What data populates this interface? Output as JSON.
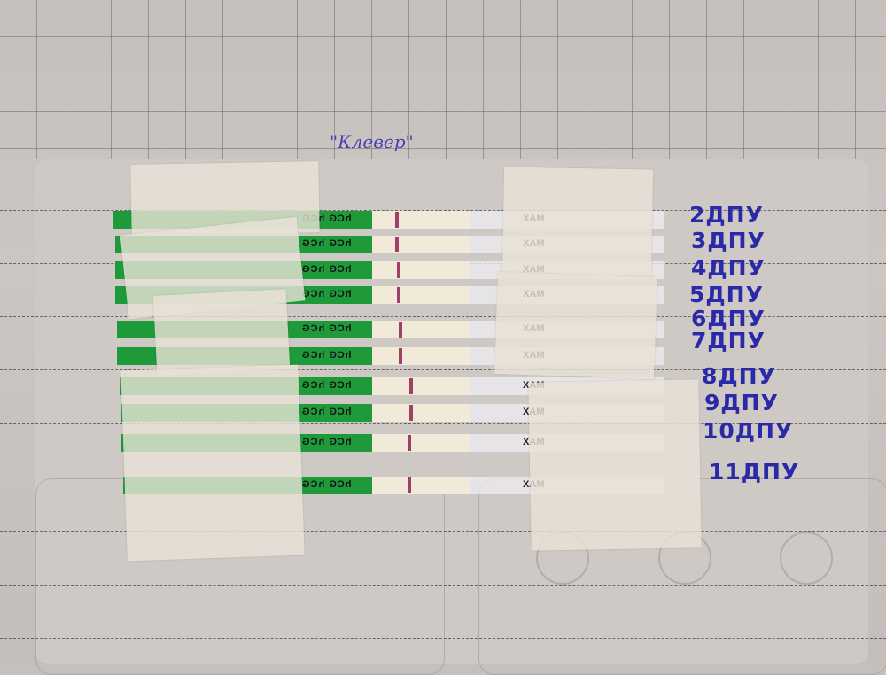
{
  "brand_label": "\"Клевер\"",
  "strip_print": "hCG hCG",
  "strip_max": "MAX",
  "colors": {
    "test_strip_green": "#1f9a3a",
    "control_line": "#a0406a",
    "ink": "#2a2aa8"
  },
  "strips": [
    {
      "label": "2ДПУ"
    },
    {
      "label": "3ДПУ"
    },
    {
      "label": "4ДПУ"
    },
    {
      "label": "5ДПУ"
    },
    {
      "label": "6ДПУ"
    },
    {
      "label": "7ДПУ"
    },
    {
      "label": "8ДПУ"
    },
    {
      "label": "9ДПУ"
    },
    {
      "label": "10ДПУ"
    },
    {
      "label": "11ДПУ"
    }
  ]
}
